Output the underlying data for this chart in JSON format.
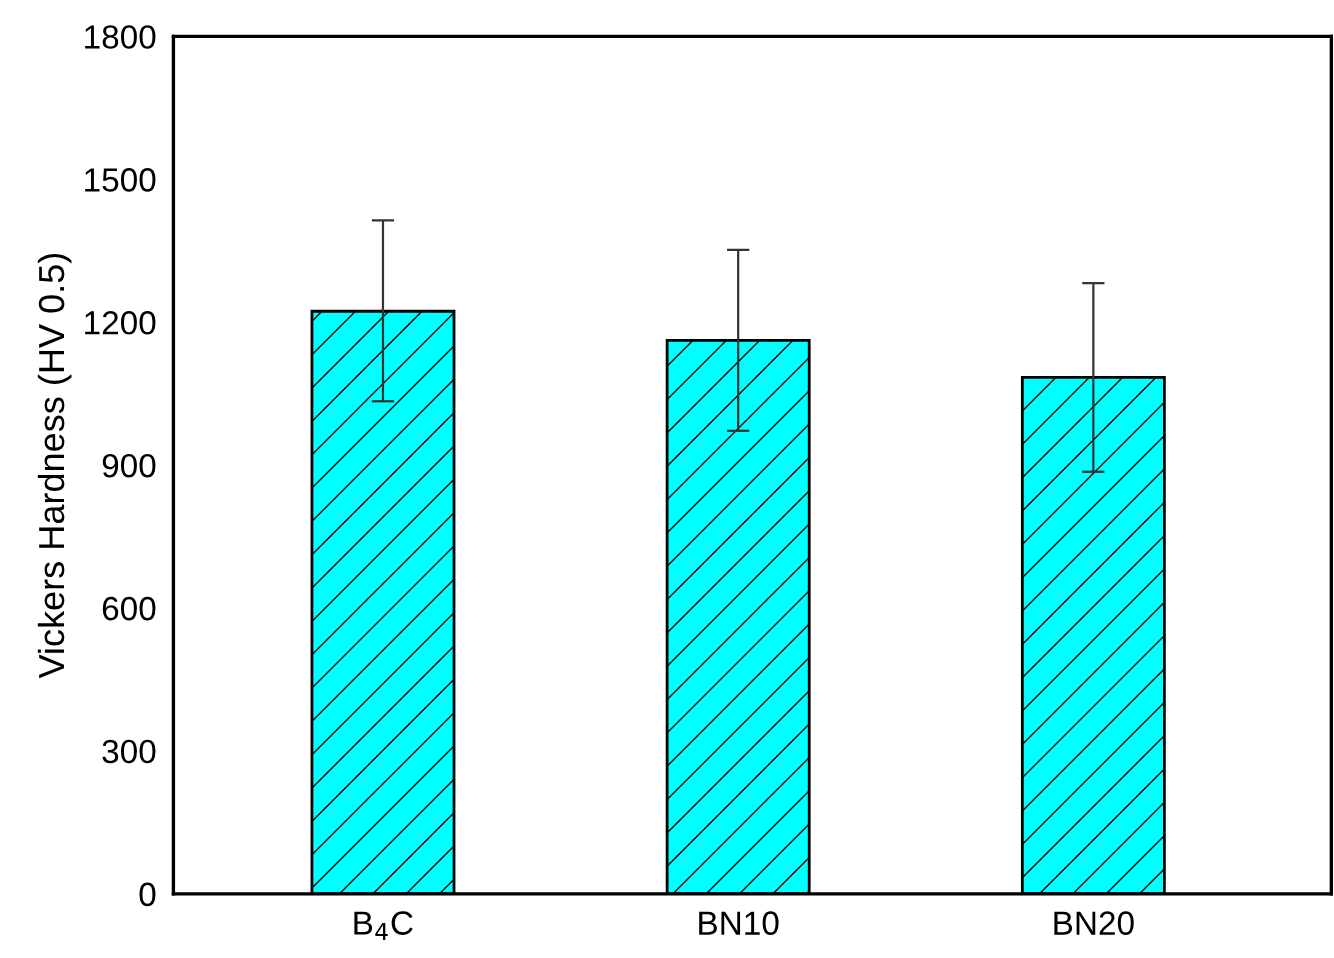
{
  "chart_data": {
    "type": "bar",
    "ylabel": "Vickers Hardness (HV 0.5)",
    "categories": [
      "B$_{4}$C",
      "BN10",
      "BN20"
    ],
    "values": [
      1223,
      1162,
      1084
    ],
    "errors": [
      [
        1034,
        1414
      ],
      [
        972,
        1352
      ],
      [
        886,
        1282
      ]
    ],
    "color": "#00ffff",
    "ylim": [
      0,
      1800
    ],
    "yticks": [
      0,
      300,
      600,
      900,
      1200,
      1500,
      1800
    ],
    "grid": false,
    "legend": false
  }
}
